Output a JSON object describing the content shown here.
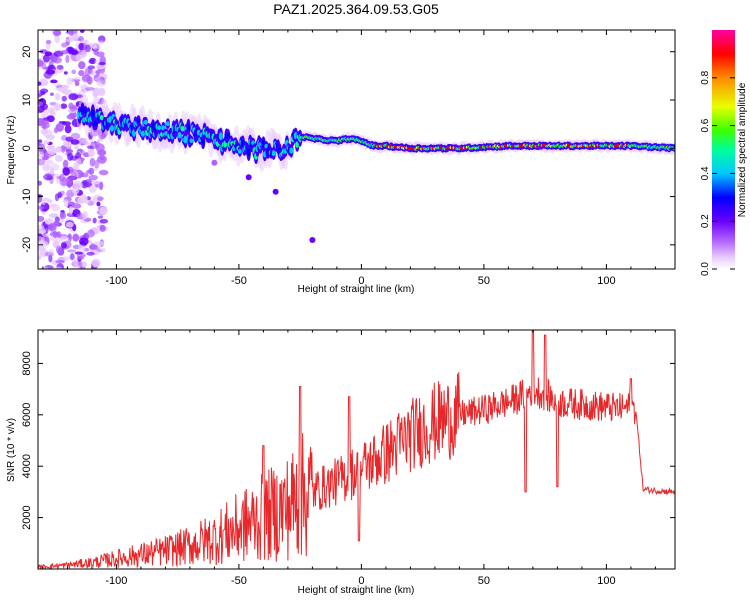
{
  "title": "PAZ1.2025.364.09.53.G05",
  "colors": {
    "snr_line": "#e8272a",
    "spectrogram_band": "#3a00ff",
    "colormap": [
      "#ffffff",
      "#e8c8ff",
      "#b060ff",
      "#6a00ff",
      "#0000ff",
      "#00c8ff",
      "#00ff9a",
      "#3cff00",
      "#e8ff00",
      "#ff8a00",
      "#ff0000",
      "#ff00a0"
    ]
  },
  "chart_data": [
    {
      "type": "heatmap",
      "title": "PAZ1.2025.364.09.53.G05",
      "xlabel": "Height of straight line (km)",
      "ylabel": "Frequency (Hz)",
      "xlim": [
        -132,
        128
      ],
      "ylim": [
        -25,
        24.5
      ],
      "xticks": [
        -100,
        -50,
        0,
        50,
        100
      ],
      "xtick_labels": [
        "-100",
        "-50",
        "0",
        "50",
        "100"
      ],
      "yticks": [
        -20,
        -10,
        0,
        10,
        20
      ],
      "ytick_labels": [
        "-20",
        "-10",
        "0",
        "10",
        "20"
      ],
      "ridge": {
        "description_note": "",
        "x": [
          -115,
          -100,
          -85,
          -70,
          -60,
          -50,
          -40,
          -30,
          -25,
          -20,
          -10,
          -5,
          0,
          5,
          10,
          20,
          40,
          60,
          80,
          100,
          110,
          128
        ],
        "freq": [
          7,
          5,
          4,
          3,
          2,
          0.5,
          -0.5,
          0,
          2.5,
          2,
          1.5,
          2,
          1.5,
          0.5,
          0.5,
          0,
          0,
          0.5,
          0.5,
          0.5,
          0.5,
          0
        ]
      },
      "colorbar": {
        "label": "Normalized spectral amplitude",
        "range": [
          0,
          1
        ],
        "ticks": [
          0.0,
          0.2,
          0.4,
          0.6,
          0.8
        ],
        "tick_labels": [
          "0.0",
          "0.2",
          "0.4",
          "0.6",
          "0.8"
        ]
      }
    },
    {
      "type": "line",
      "xlabel": "Height of straight line (km)",
      "ylabel": "SNR (10 * v/v)",
      "xlim": [
        -132,
        128
      ],
      "ylim": [
        0,
        9300
      ],
      "xticks": [
        -100,
        -50,
        0,
        50,
        100
      ],
      "xtick_labels": [
        "-100",
        "-50",
        "0",
        "50",
        "100"
      ],
      "yticks": [
        2000,
        4000,
        6000,
        8000
      ],
      "ytick_labels": [
        "2000",
        "4000",
        "6000",
        "8000"
      ],
      "series": [
        {
          "x": [
            -132,
            -120,
            -110,
            -100,
            -90,
            -80,
            -70,
            -60,
            -50,
            -40,
            -30,
            -25,
            -20,
            -10,
            0,
            10,
            20,
            30,
            40,
            50,
            60,
            65,
            70,
            75,
            80,
            90,
            100,
            105,
            110,
            112,
            115,
            120,
            128
          ],
          "y": [
            80,
            150,
            250,
            400,
            550,
            700,
            900,
            1200,
            1600,
            2000,
            2400,
            2800,
            3000,
            3400,
            3900,
            4500,
            5200,
            5700,
            6000,
            6200,
            6500,
            6700,
            7000,
            6800,
            6500,
            6400,
            6300,
            6250,
            6300,
            6200,
            3100,
            3050,
            3000
          ],
          "spikes": [
            {
              "x": -25,
              "y": 7100
            },
            {
              "x": -40,
              "y": 4800
            },
            {
              "x": -5,
              "y": 6700
            },
            {
              "x": -1,
              "y": 1100
            },
            {
              "x": 67,
              "y": 3000
            },
            {
              "x": 70,
              "y": 9300
            },
            {
              "x": 75,
              "y": 9100
            },
            {
              "x": 80,
              "y": 3200
            },
            {
              "x": 110,
              "y": 7400
            }
          ]
        }
      ]
    }
  ]
}
